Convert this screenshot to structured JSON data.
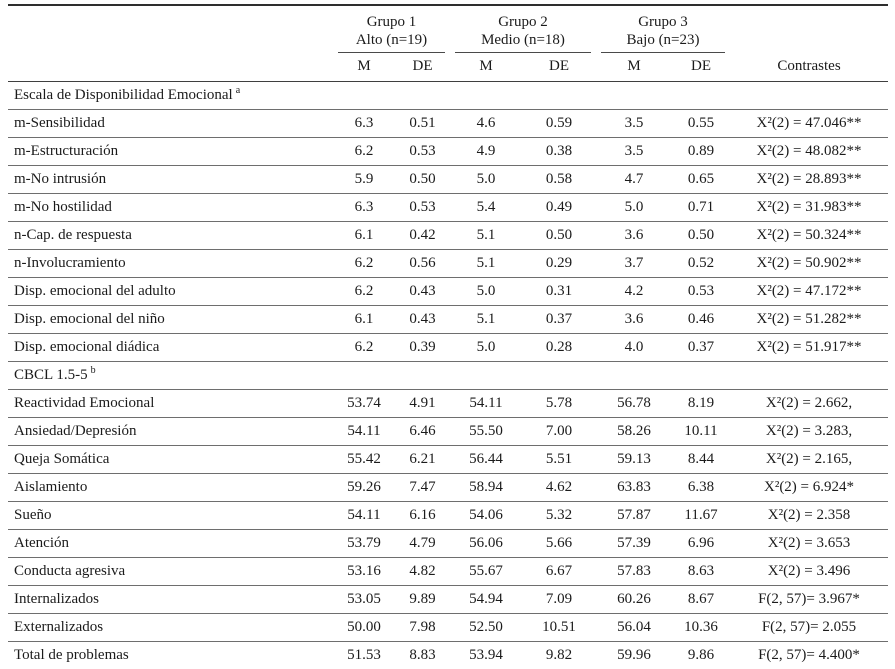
{
  "table": {
    "groups": [
      {
        "name": "Grupo 1",
        "subtitle": "Alto (n=19)"
      },
      {
        "name": "Grupo 2",
        "subtitle": "Medio (n=18)"
      },
      {
        "name": "Grupo 3",
        "subtitle": "Bajo (n=23)"
      }
    ],
    "contrastes_label": "Contrastes",
    "stat_headers": [
      "M",
      "DE",
      "M",
      "DE",
      "M",
      "DE"
    ],
    "sections": [
      {
        "title": "Escala de Disponibilidad  Emocional",
        "superscript": "a",
        "rows": [
          {
            "label": "m-Sensibilidad",
            "values": [
              "6.3",
              "0.51",
              "4.6",
              "0.59",
              "3.5",
              "0.55"
            ],
            "contrast": "X²(2) = 47.046**"
          },
          {
            "label": "m-Estructuración",
            "values": [
              "6.2",
              "0.53",
              "4.9",
              "0.38",
              "3.5",
              "0.89"
            ],
            "contrast": "X²(2) = 48.082**"
          },
          {
            "label": "m-No intrusión",
            "values": [
              "5.9",
              "0.50",
              "5.0",
              "0.58",
              "4.7",
              "0.65"
            ],
            "contrast": "X²(2) = 28.893**"
          },
          {
            "label": "m-No hostilidad",
            "values": [
              "6.3",
              "0.53",
              "5.4",
              "0.49",
              "5.0",
              "0.71"
            ],
            "contrast": "X²(2) = 31.983**"
          },
          {
            "label": "n-Cap. de respuesta",
            "values": [
              "6.1",
              "0.42",
              "5.1",
              "0.50",
              "3.6",
              "0.50"
            ],
            "contrast": "X²(2) = 50.324**"
          },
          {
            "label": "n-Involucramiento",
            "values": [
              "6.2",
              "0.56",
              "5.1",
              "0.29",
              "3.7",
              "0.52"
            ],
            "contrast": "X²(2) = 50.902**"
          },
          {
            "label": "Disp. emocional del adulto",
            "values": [
              "6.2",
              "0.43",
              "5.0",
              "0.31",
              "4.2",
              "0.53"
            ],
            "contrast": "X²(2) = 47.172**"
          },
          {
            "label": "Disp. emocional del niño",
            "values": [
              "6.1",
              "0.43",
              "5.1",
              "0.37",
              "3.6",
              "0.46"
            ],
            "contrast": "X²(2) = 51.282**"
          },
          {
            "label": "Disp. emocional diádica",
            "values": [
              "6.2",
              "0.39",
              "5.0",
              "0.28",
              "4.0",
              "0.37"
            ],
            "contrast": "X²(2) = 51.917**"
          }
        ]
      },
      {
        "title": "CBCL 1.5-5",
        "superscript": "b",
        "rows": [
          {
            "label": "Reactividad Emocional",
            "values": [
              "53.74",
              "4.91",
              "54.11",
              "5.78",
              "56.78",
              "8.19"
            ],
            "contrast": "X²(2) = 2.662,"
          },
          {
            "label": "Ansiedad/Depresión",
            "values": [
              "54.11",
              "6.46",
              "55.50",
              "7.00",
              "58.26",
              "10.11"
            ],
            "contrast": "X²(2) = 3.283,"
          },
          {
            "label": "Queja Somática",
            "values": [
              "55.42",
              "6.21",
              "56.44",
              "5.51",
              "59.13",
              "8.44"
            ],
            "contrast": "X²(2) = 2.165,"
          },
          {
            "label": "Aislamiento",
            "values": [
              "59.26",
              "7.47",
              "58.94",
              "4.62",
              "63.83",
              "6.38"
            ],
            "contrast": "X²(2) = 6.924*"
          },
          {
            "label": "Sueño",
            "values": [
              "54.11",
              "6.16",
              "54.06",
              "5.32",
              "57.87",
              "11.67"
            ],
            "contrast": "X²(2) = 2.358"
          },
          {
            "label": "Atención",
            "values": [
              "53.79",
              "4.79",
              "56.06",
              "5.66",
              "57.39",
              "6.96"
            ],
            "contrast": "X²(2) = 3.653"
          },
          {
            "label": "Conducta agresiva",
            "values": [
              "53.16",
              "4.82",
              "55.67",
              "6.67",
              "57.83",
              "8.63"
            ],
            "contrast": "X²(2) = 3.496"
          },
          {
            "label": "Internalizados",
            "values": [
              "53.05",
              "9.89",
              "54.94",
              "7.09",
              "60.26",
              "8.67"
            ],
            "contrast": "F(2, 57)= 3.967*"
          },
          {
            "label": "Externalizados",
            "values": [
              "50.00",
              "7.98",
              "52.50",
              "10.51",
              "56.04",
              "10.36"
            ],
            "contrast": "F(2, 57)= 2.055"
          },
          {
            "label": "Total de problemas",
            "values": [
              "51.53",
              "8.83",
              "53.94",
              "9.82",
              "59.96",
              "9.86"
            ],
            "contrast": "F(2, 57)= 4.400*"
          }
        ]
      }
    ]
  }
}
